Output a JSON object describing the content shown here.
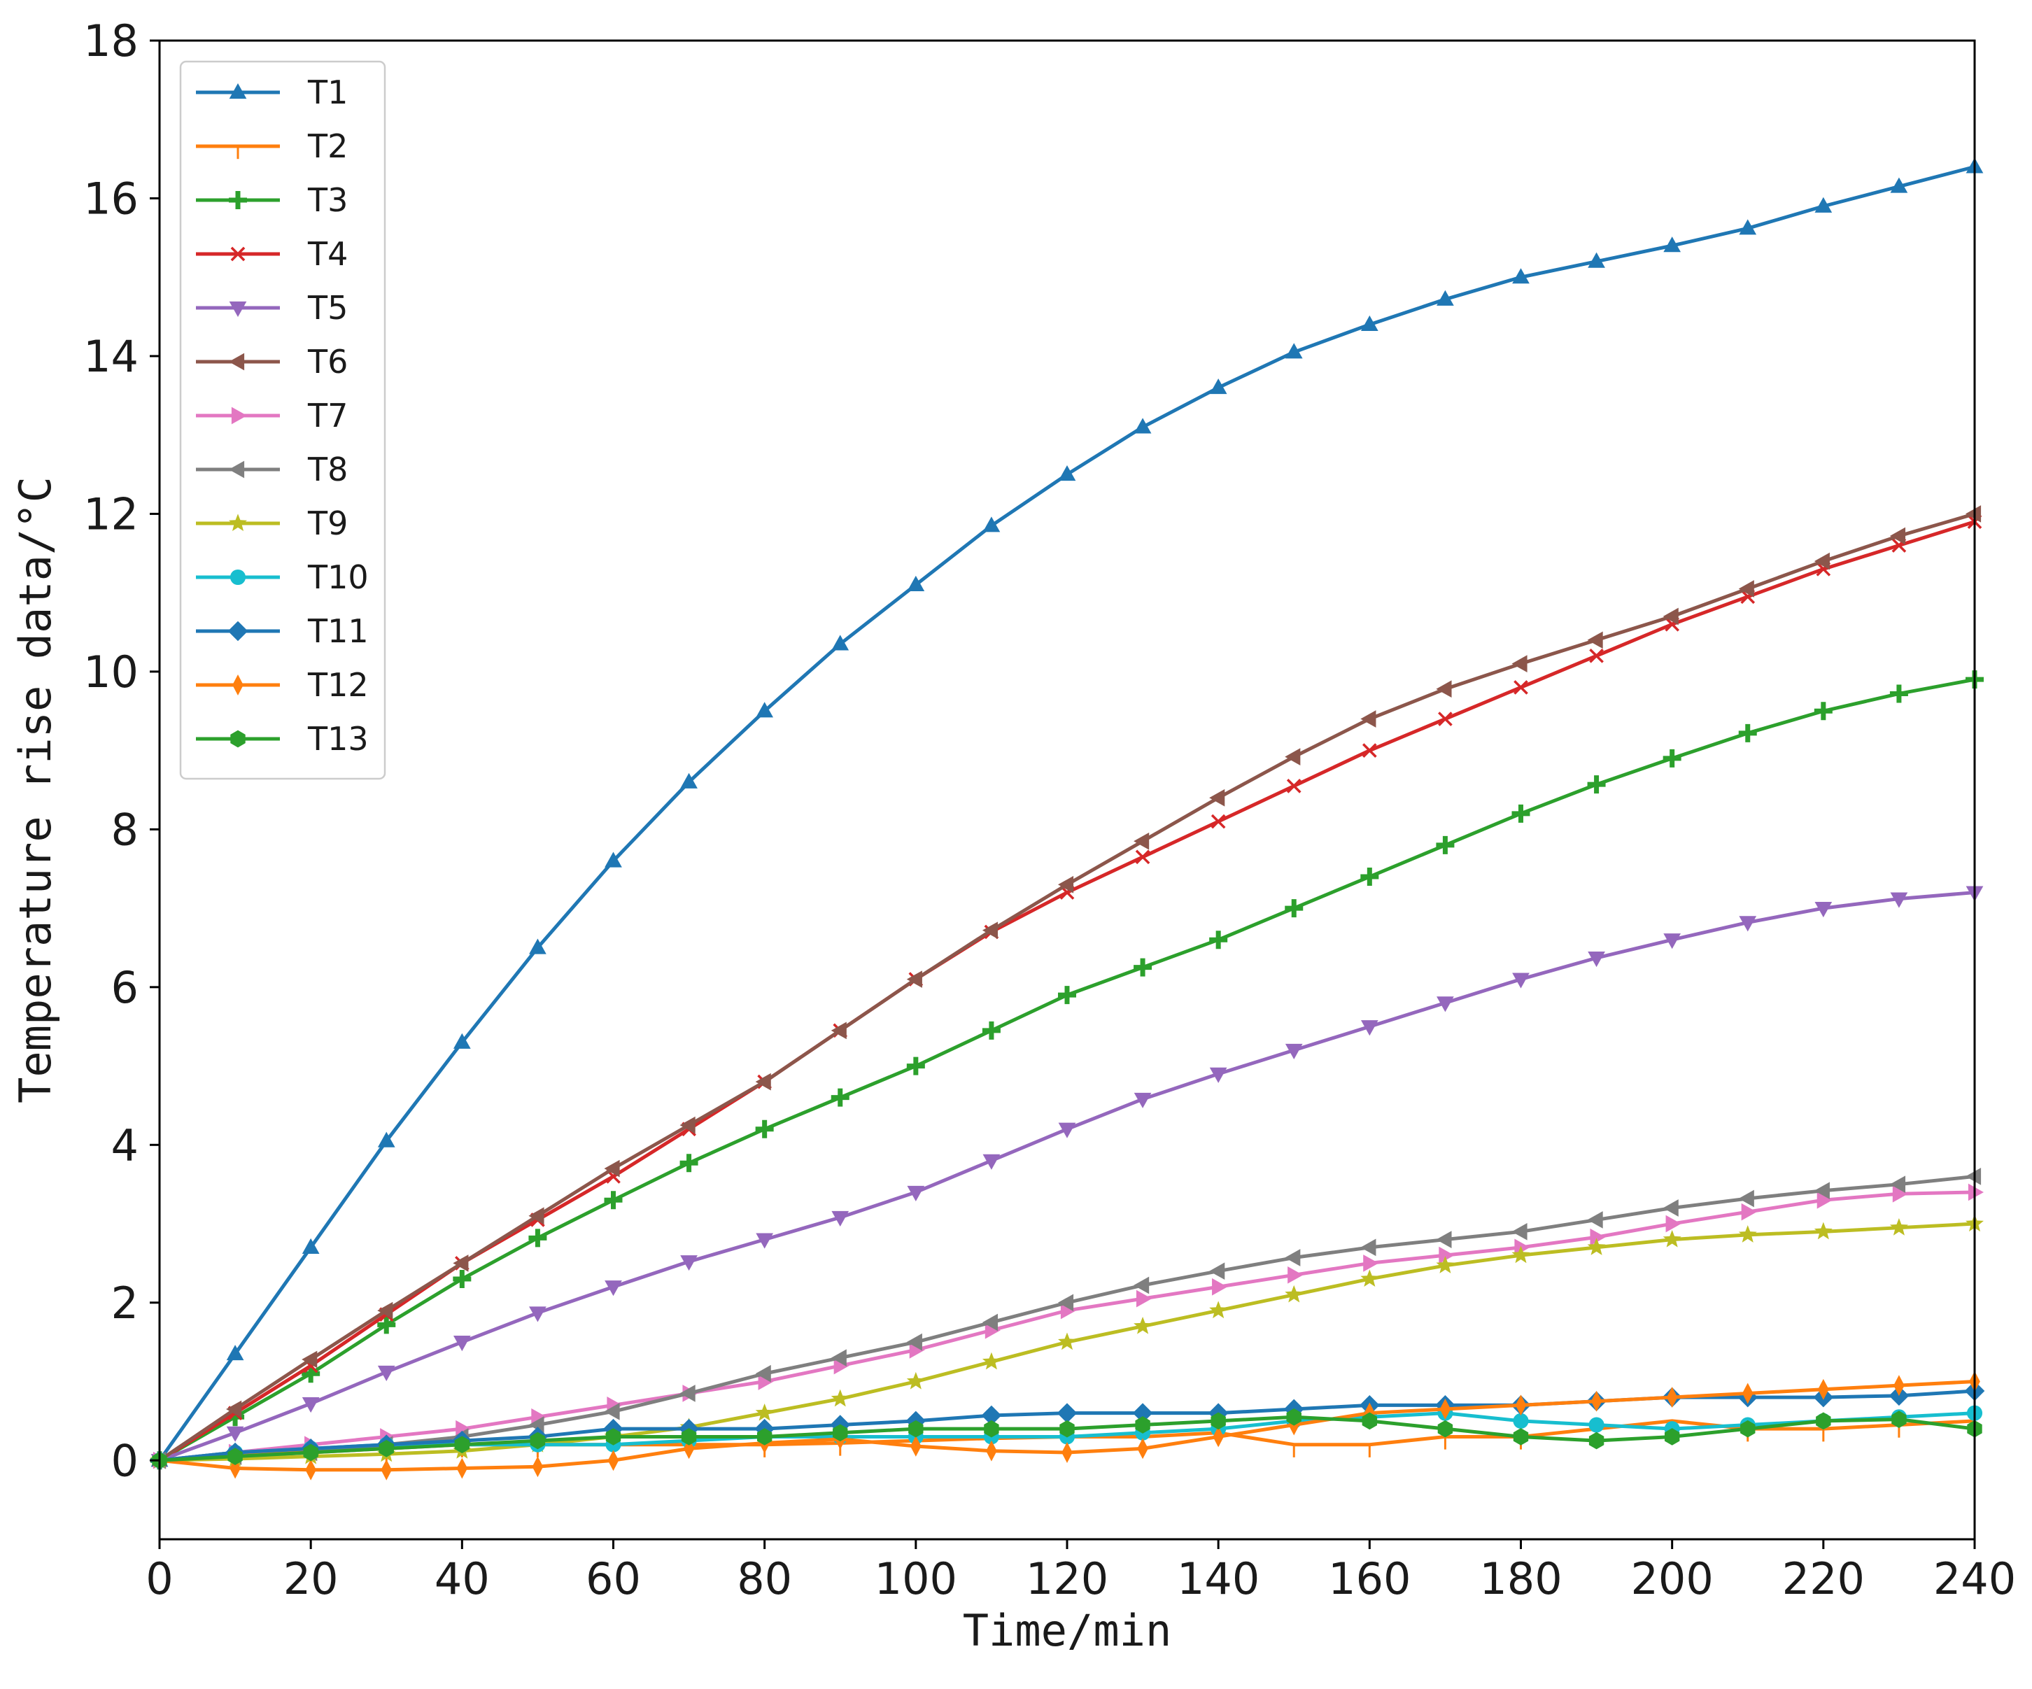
{
  "chart_data": {
    "type": "line",
    "title": "",
    "xlabel": "Time/min",
    "ylabel": "Temperature rise data/°C",
    "xlim": [
      0,
      240
    ],
    "ylim": [
      -1,
      18
    ],
    "xticks": [
      0,
      20,
      40,
      60,
      80,
      100,
      120,
      140,
      160,
      180,
      200,
      220,
      240
    ],
    "yticks": [
      0,
      2,
      4,
      6,
      8,
      10,
      12,
      14,
      16,
      18
    ],
    "grid": false,
    "legend_position": "top-left",
    "x": [
      0,
      10,
      20,
      30,
      40,
      50,
      60,
      70,
      80,
      90,
      100,
      110,
      120,
      130,
      140,
      150,
      160,
      170,
      180,
      190,
      200,
      210,
      220,
      230,
      240
    ],
    "series": [
      {
        "name": "T1",
        "color": "#1f77b4",
        "marker": "triangle-up",
        "values": [
          0,
          1.35,
          2.7,
          4.05,
          5.3,
          6.5,
          7.6,
          8.6,
          9.5,
          10.35,
          11.1,
          11.85,
          12.5,
          13.1,
          13.6,
          14.05,
          14.4,
          14.72,
          15.0,
          15.2,
          15.4,
          15.62,
          15.9,
          16.15,
          16.4
        ]
      },
      {
        "name": "T2",
        "color": "#ff7f0e",
        "marker": "tick-down",
        "values": [
          0,
          0.1,
          0.1,
          0.15,
          0.2,
          0.2,
          0.2,
          0.2,
          0.2,
          0.22,
          0.25,
          0.28,
          0.3,
          0.3,
          0.35,
          0.2,
          0.2,
          0.3,
          0.3,
          0.4,
          0.5,
          0.4,
          0.4,
          0.45,
          0.5
        ]
      },
      {
        "name": "T3",
        "color": "#2ca02c",
        "marker": "plus",
        "values": [
          0,
          0.55,
          1.1,
          1.72,
          2.3,
          2.82,
          3.3,
          3.77,
          4.2,
          4.6,
          5.0,
          5.45,
          5.9,
          6.25,
          6.6,
          7.0,
          7.4,
          7.8,
          8.2,
          8.57,
          8.9,
          9.22,
          9.5,
          9.72,
          9.9
        ]
      },
      {
        "name": "T4",
        "color": "#d62728",
        "marker": "x",
        "values": [
          0,
          0.6,
          1.2,
          1.85,
          2.5,
          3.05,
          3.6,
          4.2,
          4.8,
          5.45,
          6.1,
          6.7,
          7.2,
          7.65,
          8.1,
          8.55,
          9.0,
          9.4,
          9.8,
          10.2,
          10.6,
          10.95,
          11.3,
          11.6,
          11.9
        ]
      },
      {
        "name": "T5",
        "color": "#9467bd",
        "marker": "triangle-down",
        "values": [
          0,
          0.35,
          0.72,
          1.12,
          1.5,
          1.87,
          2.2,
          2.52,
          2.8,
          3.08,
          3.4,
          3.8,
          4.2,
          4.58,
          4.9,
          5.2,
          5.5,
          5.8,
          6.1,
          6.37,
          6.6,
          6.82,
          7.0,
          7.12,
          7.2
        ]
      },
      {
        "name": "T6",
        "color": "#8c564b",
        "marker": "triangle-left",
        "values": [
          0,
          0.65,
          1.28,
          1.9,
          2.5,
          3.1,
          3.7,
          4.25,
          4.8,
          5.45,
          6.1,
          6.72,
          7.3,
          7.85,
          8.4,
          8.92,
          9.4,
          9.78,
          10.1,
          10.4,
          10.7,
          11.05,
          11.4,
          11.72,
          12.0
        ]
      },
      {
        "name": "T7",
        "color": "#e377c2",
        "marker": "triangle-right",
        "values": [
          0,
          0.1,
          0.2,
          0.3,
          0.4,
          0.55,
          0.7,
          0.85,
          1.0,
          1.2,
          1.4,
          1.65,
          1.9,
          2.05,
          2.2,
          2.35,
          2.5,
          2.6,
          2.7,
          2.83,
          3.0,
          3.15,
          3.3,
          3.38,
          3.4
        ]
      },
      {
        "name": "T8",
        "color": "#7f7f7f",
        "marker": "triangle-left",
        "values": [
          0,
          0.05,
          0.1,
          0.2,
          0.3,
          0.45,
          0.62,
          0.85,
          1.1,
          1.3,
          1.5,
          1.75,
          2.0,
          2.22,
          2.4,
          2.57,
          2.7,
          2.8,
          2.9,
          3.05,
          3.2,
          3.32,
          3.42,
          3.5,
          3.6
        ]
      },
      {
        "name": "T9",
        "color": "#bcbd22",
        "marker": "star",
        "values": [
          0,
          0.02,
          0.05,
          0.08,
          0.12,
          0.2,
          0.3,
          0.42,
          0.6,
          0.78,
          1.0,
          1.25,
          1.5,
          1.7,
          1.9,
          2.1,
          2.3,
          2.47,
          2.6,
          2.7,
          2.8,
          2.86,
          2.9,
          2.95,
          3.0
        ]
      },
      {
        "name": "T10",
        "color": "#17becf",
        "marker": "circle",
        "values": [
          0,
          0.1,
          0.15,
          0.2,
          0.2,
          0.2,
          0.2,
          0.25,
          0.3,
          0.3,
          0.3,
          0.3,
          0.3,
          0.35,
          0.4,
          0.5,
          0.55,
          0.6,
          0.5,
          0.45,
          0.4,
          0.45,
          0.5,
          0.55,
          0.6
        ]
      },
      {
        "name": "T11",
        "color": "#1f77b4",
        "marker": "diamond",
        "values": [
          0,
          0.1,
          0.15,
          0.2,
          0.25,
          0.3,
          0.4,
          0.4,
          0.4,
          0.45,
          0.5,
          0.57,
          0.6,
          0.6,
          0.6,
          0.65,
          0.7,
          0.7,
          0.7,
          0.75,
          0.8,
          0.8,
          0.8,
          0.82,
          0.88
        ]
      },
      {
        "name": "T12",
        "color": "#ff7f0e",
        "marker": "thin-diamond",
        "values": [
          0,
          -0.1,
          -0.12,
          -0.12,
          -0.1,
          -0.08,
          0,
          0.15,
          0.22,
          0.27,
          0.18,
          0.12,
          0.1,
          0.15,
          0.3,
          0.45,
          0.6,
          0.65,
          0.7,
          0.75,
          0.8,
          0.85,
          0.9,
          0.95,
          1.0
        ]
      },
      {
        "name": "T13",
        "color": "#2ca02c",
        "marker": "hexagon",
        "values": [
          0,
          0.05,
          0.1,
          0.15,
          0.2,
          0.25,
          0.3,
          0.3,
          0.3,
          0.35,
          0.4,
          0.4,
          0.4,
          0.45,
          0.5,
          0.55,
          0.5,
          0.4,
          0.3,
          0.25,
          0.3,
          0.4,
          0.5,
          0.52,
          0.4
        ]
      }
    ]
  }
}
